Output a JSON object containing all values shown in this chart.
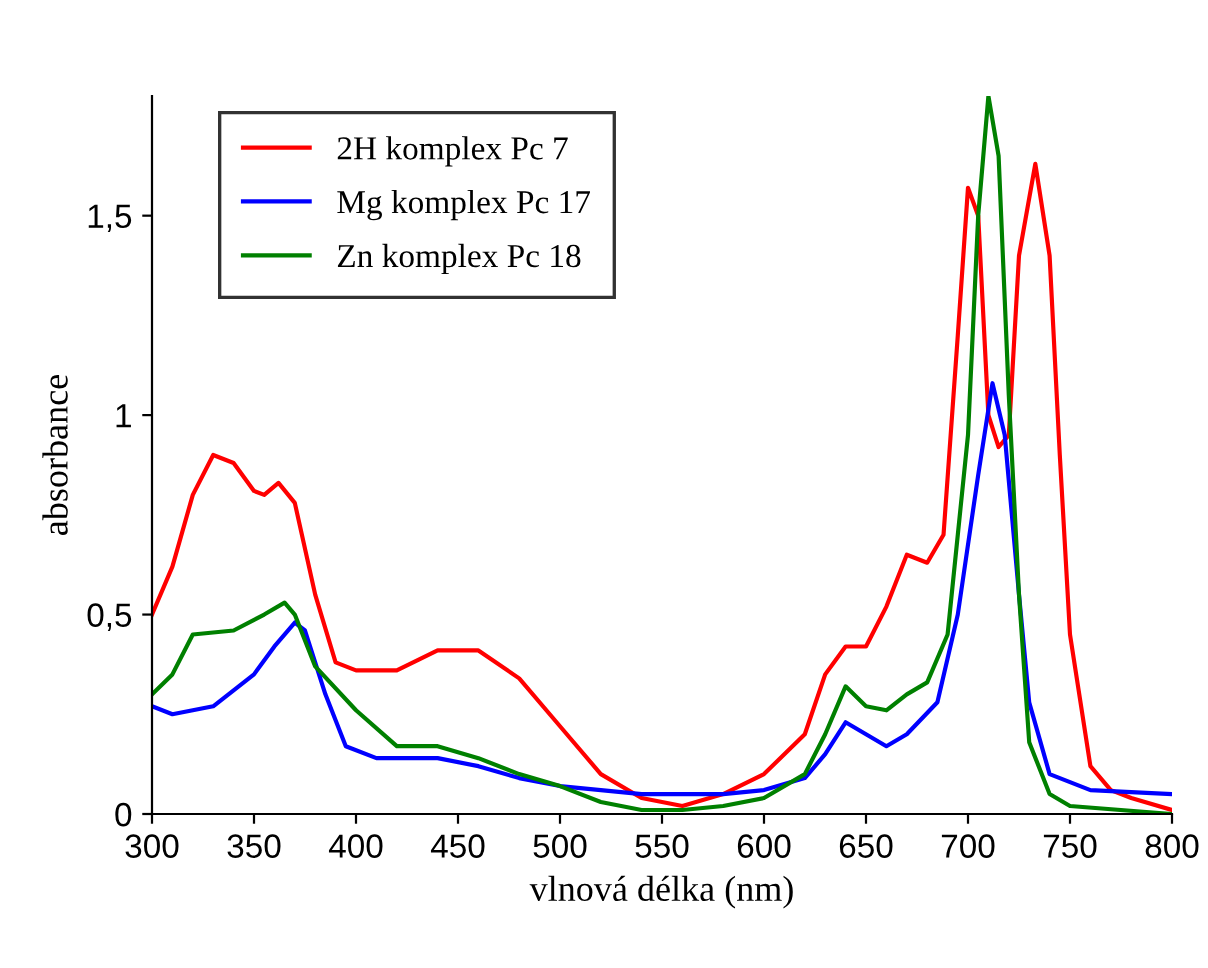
{
  "chart_data": {
    "type": "line",
    "xlabel": "vlnová délka (nm)",
    "ylabel": "absorbance",
    "xlim": [
      300,
      800
    ],
    "xticks": [
      300,
      350,
      400,
      450,
      500,
      550,
      600,
      650,
      700,
      750,
      800
    ],
    "ylim": [
      0,
      1.8
    ],
    "yticks": [
      0,
      {
        "value": 0.5,
        "label": "0,5"
      },
      1,
      {
        "value": 1.5,
        "label": "1,5"
      }
    ],
    "grid": false,
    "legend": "top left",
    "marker": "none",
    "line_style": "solid",
    "series": [
      {
        "name": "2H komplex Pc 7",
        "color": "#ff0000",
        "x": [
          300,
          310,
          320,
          330,
          340,
          350,
          355,
          362,
          370,
          380,
          390,
          400,
          420,
          440,
          460,
          480,
          500,
          520,
          540,
          560,
          580,
          600,
          620,
          630,
          640,
          650,
          660,
          670,
          680,
          688,
          695,
          700,
          705,
          710,
          715,
          720,
          725,
          733,
          740,
          745,
          750,
          760,
          770,
          780,
          800
        ],
        "values": [
          0.5,
          0.62,
          0.8,
          0.9,
          0.88,
          0.81,
          0.8,
          0.83,
          0.78,
          0.55,
          0.38,
          0.36,
          0.36,
          0.41,
          0.41,
          0.34,
          0.22,
          0.1,
          0.04,
          0.02,
          0.05,
          0.1,
          0.2,
          0.35,
          0.42,
          0.42,
          0.52,
          0.65,
          0.63,
          0.7,
          1.2,
          1.57,
          1.5,
          1.0,
          0.92,
          0.95,
          1.4,
          1.63,
          1.4,
          0.9,
          0.45,
          0.12,
          0.06,
          0.04,
          0.01
        ]
      },
      {
        "name": "Mg komplex Pc 17",
        "color": "#0000ff",
        "x": [
          300,
          310,
          330,
          350,
          360,
          370,
          375,
          385,
          395,
          410,
          440,
          460,
          480,
          500,
          520,
          540,
          560,
          580,
          600,
          620,
          630,
          640,
          650,
          660,
          670,
          685,
          695,
          705,
          712,
          718,
          725,
          730,
          740,
          760,
          800
        ],
        "values": [
          0.27,
          0.25,
          0.27,
          0.35,
          0.42,
          0.48,
          0.46,
          0.3,
          0.17,
          0.14,
          0.14,
          0.12,
          0.09,
          0.07,
          0.06,
          0.05,
          0.05,
          0.05,
          0.06,
          0.09,
          0.15,
          0.23,
          0.2,
          0.17,
          0.2,
          0.28,
          0.5,
          0.85,
          1.08,
          0.95,
          0.55,
          0.28,
          0.1,
          0.06,
          0.05
        ]
      },
      {
        "name": "Zn komplex Pc 18",
        "color": "#008000",
        "x": [
          300,
          310,
          320,
          340,
          355,
          365,
          370,
          380,
          400,
          420,
          440,
          460,
          480,
          500,
          520,
          540,
          560,
          580,
          600,
          620,
          630,
          640,
          650,
          660,
          670,
          680,
          690,
          700,
          705,
          710,
          715,
          720,
          725,
          730,
          740,
          750,
          800
        ],
        "values": [
          0.3,
          0.35,
          0.45,
          0.46,
          0.5,
          0.53,
          0.5,
          0.37,
          0.26,
          0.17,
          0.17,
          0.14,
          0.1,
          0.07,
          0.03,
          0.01,
          0.01,
          0.02,
          0.04,
          0.1,
          0.2,
          0.32,
          0.27,
          0.26,
          0.3,
          0.33,
          0.45,
          0.95,
          1.5,
          1.8,
          1.65,
          1.05,
          0.55,
          0.18,
          0.05,
          0.02,
          0.0
        ]
      }
    ]
  }
}
